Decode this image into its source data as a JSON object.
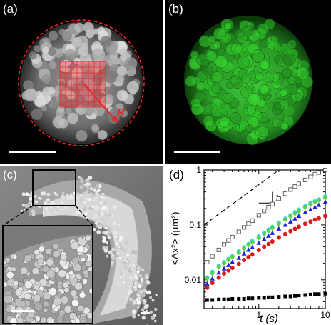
{
  "panels": {
    "a": {
      "label": "(a)",
      "annotation": "R"
    },
    "b": {
      "label": "(b)"
    },
    "c": {
      "label": "(c)"
    },
    "d": {
      "label": "(d)"
    }
  },
  "colors": {
    "red_annotation": "#e8262a",
    "green_droplet": "#2fae2a",
    "open_square": "#555555",
    "cyan": "#22e0d8",
    "green": "#60d040",
    "blue": "#2020e0",
    "red": "#e01818",
    "black": "#000000"
  },
  "chart_data": {
    "type": "scatter",
    "xscale": "log",
    "yscale": "log",
    "xlim": [
      0.15,
      10
    ],
    "ylim": [
      0.003,
      1
    ],
    "xticks": [
      "1",
      "10"
    ],
    "yticks": [
      "0.01",
      "0.1",
      "1"
    ],
    "ylabel": "<Δx²> (μm²)",
    "xlabel": "t (s)",
    "slope_label": "1",
    "x": [
      0.167,
      0.2,
      0.25,
      0.3,
      0.35,
      0.4,
      0.5,
      0.6,
      0.7,
      0.8,
      1.0,
      1.2,
      1.4,
      1.6,
      2.0,
      2.5,
      3.0,
      3.5,
      4.0,
      5.0,
      6.0,
      7.0,
      8.0,
      10.0
    ],
    "series": [
      {
        "marker": "open-square",
        "color": "#555555",
        "values": [
          0.021,
          0.027,
          0.035,
          0.044,
          0.052,
          0.06,
          0.075,
          0.09,
          0.105,
          0.12,
          0.15,
          0.18,
          0.21,
          0.24,
          0.3,
          0.37,
          0.44,
          0.5,
          0.56,
          0.66,
          0.75,
          0.84,
          0.9,
          1.0
        ]
      },
      {
        "marker": "cyan-circle",
        "color": "#22e0d8",
        "values": [
          0.011,
          0.014,
          0.018,
          0.021,
          0.024,
          0.027,
          0.033,
          0.039,
          0.045,
          0.051,
          0.062,
          0.072,
          0.082,
          0.092,
          0.11,
          0.13,
          0.15,
          0.17,
          0.19,
          0.22,
          0.25,
          0.27,
          0.29,
          0.33
        ]
      },
      {
        "marker": "green-diamond",
        "color": "#60d040",
        "values": [
          0.0105,
          0.013,
          0.017,
          0.02,
          0.023,
          0.026,
          0.031,
          0.037,
          0.043,
          0.048,
          0.058,
          0.068,
          0.077,
          0.087,
          0.104,
          0.124,
          0.142,
          0.16,
          0.177,
          0.21,
          0.235,
          0.26,
          0.28,
          0.31
        ]
      },
      {
        "marker": "blue-triangle",
        "color": "#2020e0",
        "values": [
          0.0085,
          0.0105,
          0.0135,
          0.016,
          0.0185,
          0.021,
          0.025,
          0.03,
          0.035,
          0.039,
          0.047,
          0.055,
          0.063,
          0.071,
          0.085,
          0.1,
          0.115,
          0.13,
          0.145,
          0.17,
          0.19,
          0.21,
          0.23,
          0.26
        ]
      },
      {
        "marker": "red-circle",
        "color": "#e01818",
        "values": [
          0.0072,
          0.0088,
          0.011,
          0.013,
          0.0148,
          0.0165,
          0.0195,
          0.023,
          0.026,
          0.029,
          0.035,
          0.04,
          0.045,
          0.05,
          0.059,
          0.068,
          0.077,
          0.085,
          0.093,
          0.105,
          0.115,
          0.125,
          0.132,
          0.145
        ]
      },
      {
        "marker": "black-square",
        "color": "#000000",
        "values": [
          0.0043,
          0.0043,
          0.0044,
          0.0044,
          0.0044,
          0.0045,
          0.0045,
          0.0045,
          0.0046,
          0.0046,
          0.0047,
          0.0047,
          0.0048,
          0.0048,
          0.0049,
          0.005,
          0.005,
          0.0051,
          0.0052,
          0.0053,
          0.0054,
          0.0055,
          0.0055,
          0.0056
        ]
      }
    ],
    "reference_line": {
      "x": [
        0.15,
        2.0
      ],
      "y": [
        0.1,
        1.2
      ]
    },
    "slope_triangle": {
      "x": [
        1.0,
        1.6
      ],
      "y": [
        0.25,
        0.4
      ]
    }
  }
}
